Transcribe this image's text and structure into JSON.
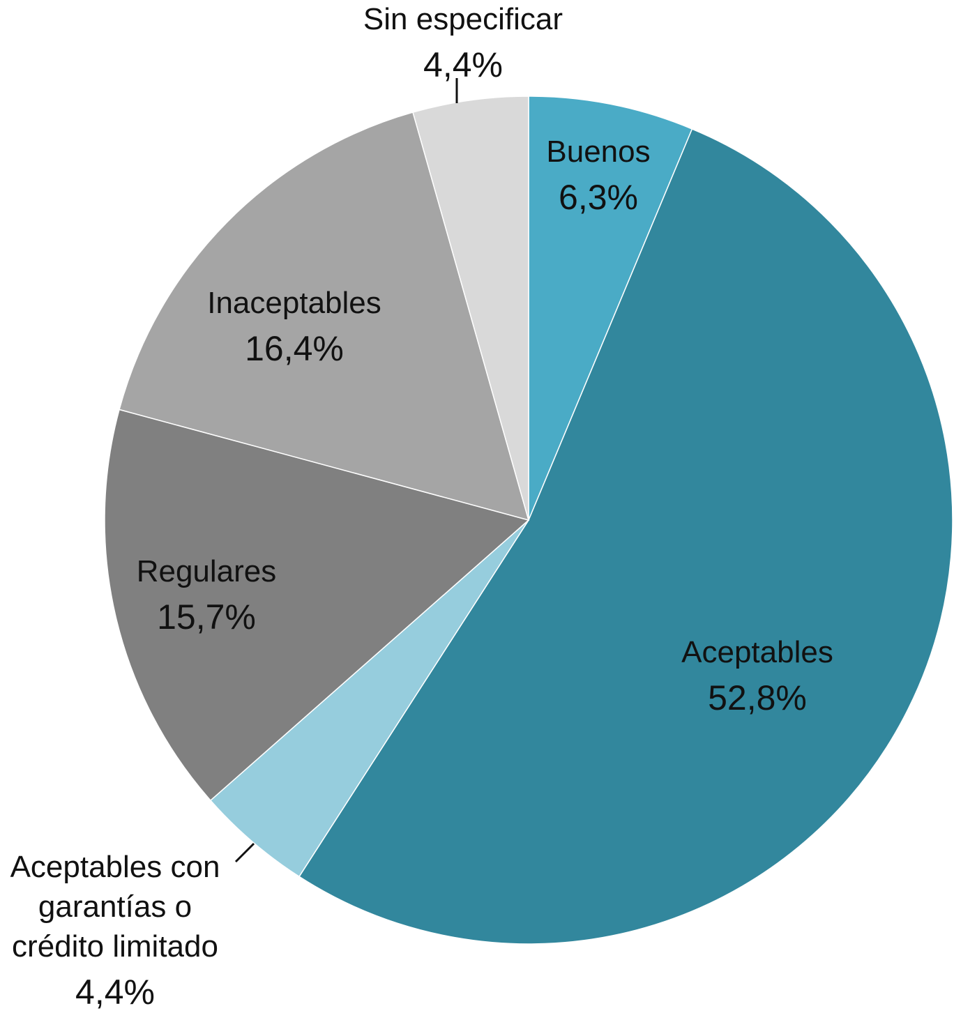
{
  "chart_data": {
    "type": "pie",
    "title": "",
    "slices": [
      {
        "label": "Buenos",
        "label_lines": [
          "Buenos"
        ],
        "value": 6.3,
        "value_label": "6,3%",
        "color": "#4aabc6"
      },
      {
        "label": "Aceptables",
        "label_lines": [
          "Aceptables"
        ],
        "value": 52.8,
        "value_label": "52,8%",
        "color": "#32879d"
      },
      {
        "label": "Aceptables con garantías o crédito limitado",
        "label_lines": [
          "Aceptables con",
          "garantías o",
          "crédito limitado"
        ],
        "value": 4.4,
        "value_label": "4,4%",
        "color": "#96cddd"
      },
      {
        "label": "Regulares",
        "label_lines": [
          "Regulares"
        ],
        "value": 15.7,
        "value_label": "15,7%",
        "color": "#808080"
      },
      {
        "label": "Inaceptables",
        "label_lines": [
          "Inaceptables"
        ],
        "value": 16.4,
        "value_label": "16,4%",
        "color": "#a5a5a5"
      },
      {
        "label": "Sin especificar",
        "label_lines": [
          "Sin especificar"
        ],
        "value": 4.4,
        "value_label": "4,4%",
        "color": "#d9d9d9"
      }
    ],
    "start": "12 o'clock",
    "direction": "clockwise",
    "legend": "none",
    "data_labels": true
  }
}
